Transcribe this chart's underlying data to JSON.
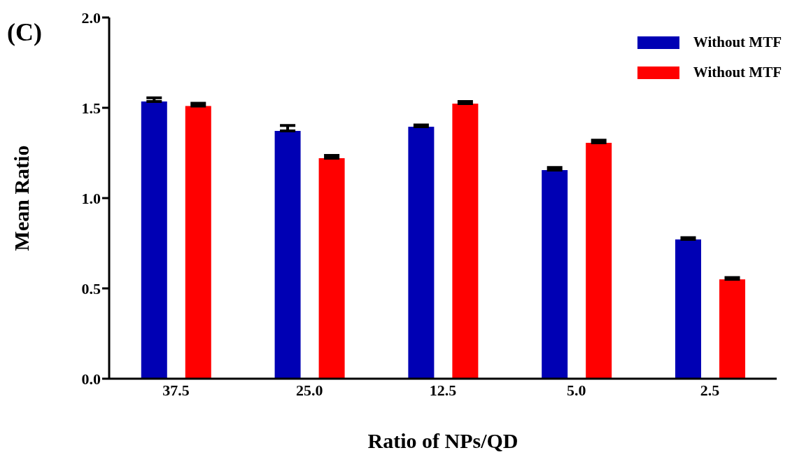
{
  "chart_data": {
    "type": "bar",
    "xlabel": "Ratio of NPs/QD",
    "ylabel": "Mean Ratio",
    "annotations": [
      "(C)"
    ],
    "categories": [
      "37.5",
      "25.0",
      "12.5",
      "5.0",
      "2.5"
    ],
    "series": [
      {
        "name": "Without MTF",
        "color": "#0000b4",
        "values": [
          1.535,
          1.372,
          1.395,
          1.155,
          0.771
        ],
        "errors": [
          [
            1.535,
            1.555
          ],
          [
            1.372,
            1.402
          ],
          [
            1.395,
            1.405
          ],
          [
            1.155,
            1.17
          ],
          [
            0.771,
            0.781
          ]
        ]
      },
      {
        "name": "Without MTF",
        "color": "#ff0000",
        "values": [
          1.51,
          1.221,
          1.523,
          1.306,
          0.55
        ],
        "errors": [
          [
            1.51,
            1.525
          ],
          [
            1.221,
            1.236
          ],
          [
            1.523,
            1.535
          ],
          [
            1.306,
            1.321
          ],
          [
            0.55,
            0.56
          ]
        ]
      }
    ],
    "ylim": [
      0,
      2
    ],
    "yticks": [
      {
        "value": 0,
        "label": "0.0"
      },
      {
        "value": 0.5,
        "label": "0.5"
      },
      {
        "value": 1,
        "label": "1.0"
      },
      {
        "value": 1.5,
        "label": "1.5"
      },
      {
        "value": 2,
        "label": "2.0"
      }
    ],
    "grid": false,
    "legend": "top right"
  }
}
